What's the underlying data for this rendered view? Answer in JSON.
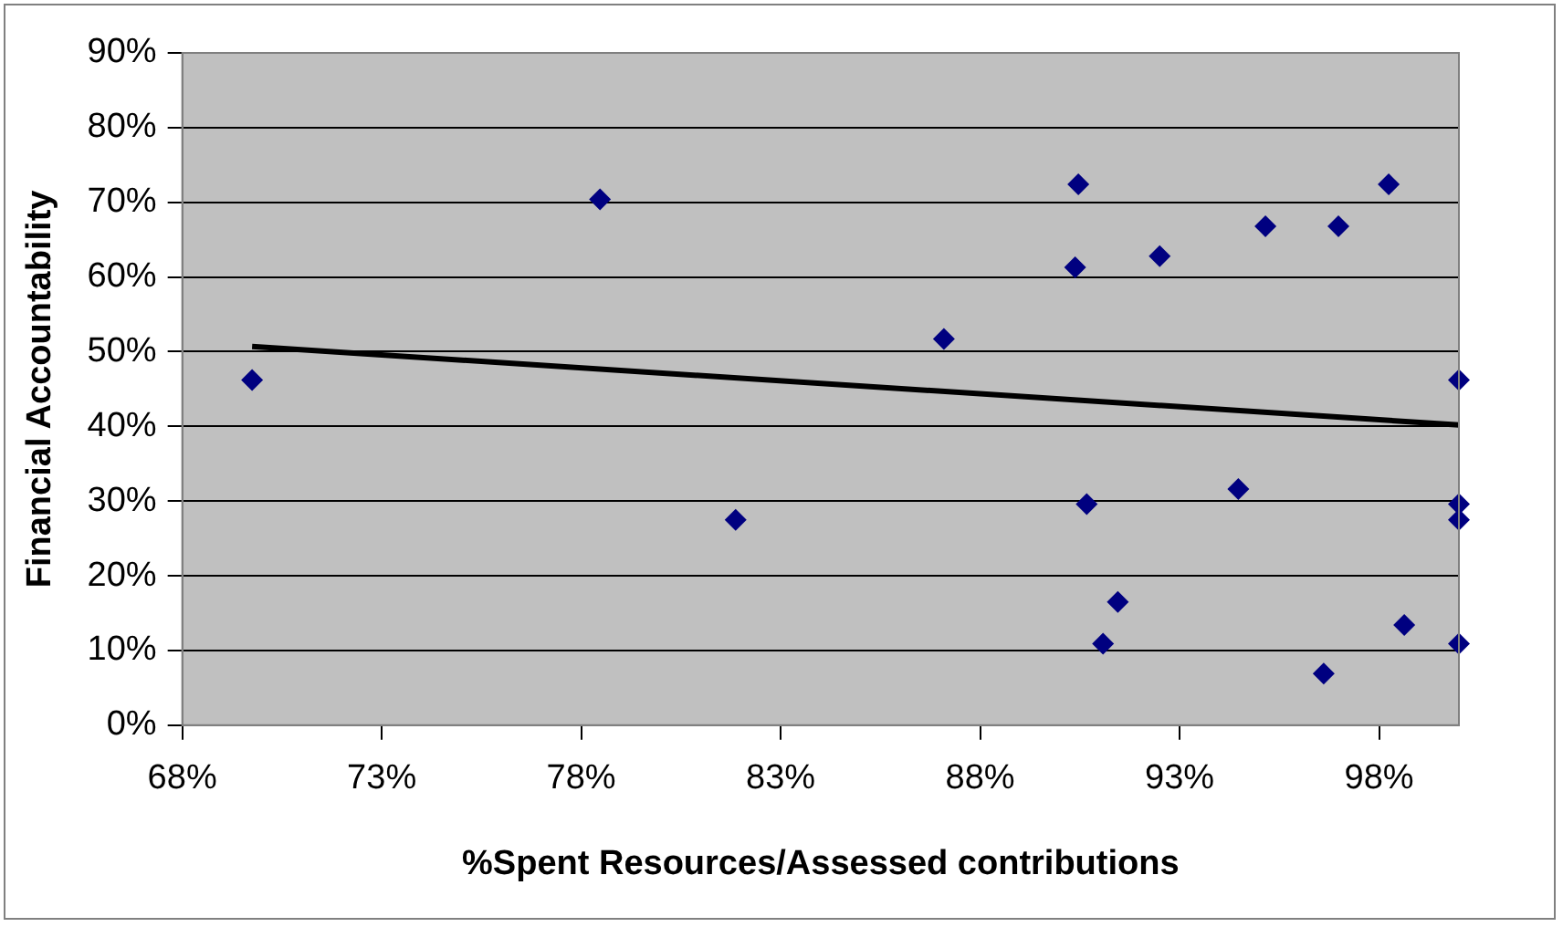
{
  "chart_data": {
    "type": "scatter",
    "xlabel": "%Spent Resources/Assessed contributions",
    "ylabel": "Financial Accountability",
    "xlim": [
      68,
      100
    ],
    "xticks": [
      {
        "value": 68,
        "label": "68%"
      },
      {
        "value": 73,
        "label": "73%"
      },
      {
        "value": 78,
        "label": "78%"
      },
      {
        "value": 83,
        "label": "83%"
      },
      {
        "value": 88,
        "label": "88%"
      },
      {
        "value": 93,
        "label": "93%"
      },
      {
        "value": 98,
        "label": "98%"
      }
    ],
    "ylim": [
      0,
      90
    ],
    "yticks": [
      {
        "value": 0,
        "label": "0%"
      },
      {
        "value": 10,
        "label": "10%"
      },
      {
        "value": 20,
        "label": "20%"
      },
      {
        "value": 30,
        "label": "30%"
      },
      {
        "value": 40,
        "label": "40%"
      },
      {
        "value": 50,
        "label": "50%"
      },
      {
        "value": 60,
        "label": "60%"
      },
      {
        "value": 70,
        "label": "70%"
      },
      {
        "value": 80,
        "label": "80%"
      },
      {
        "value": 90,
        "label": "90%"
      }
    ],
    "grid": "y",
    "marker": "diamond",
    "series": [
      {
        "color": "#000080",
        "x": [
          69.75,
          78.47,
          81.87,
          87.09,
          90.46,
          90.38,
          92.5,
          95.15,
          96.98,
          98.24,
          100,
          90.67,
          94.47,
          100,
          100,
          91.45,
          91.08,
          98.63,
          96.61,
          100
        ],
        "values": [
          46.2,
          70.4,
          27.5,
          51.7,
          72.4,
          61.3,
          62.8,
          66.8,
          66.8,
          72.4,
          46.2,
          29.6,
          31.6,
          29.6,
          27.5,
          16.5,
          10.9,
          13.4,
          6.9,
          10.9
        ]
      },
      {
        "type": "line",
        "color": "#000000",
        "marker": "none",
        "line_style": "solid",
        "x": [
          69.75,
          100
        ],
        "values": [
          50.7,
          40.2
        ]
      }
    ]
  }
}
